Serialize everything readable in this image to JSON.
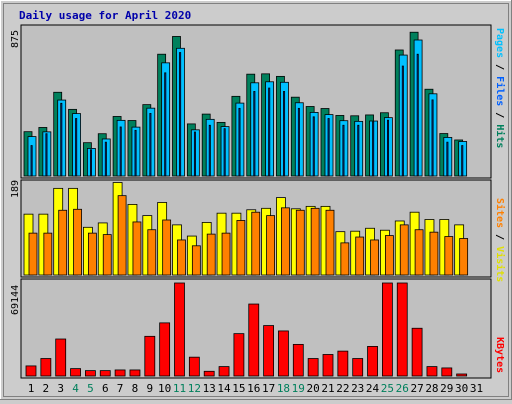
{
  "title": "Daily usage for April 2020",
  "colors": {
    "background": "#cccccc",
    "plot_bg": "#c0c0c0",
    "title": "#0000aa",
    "hits": "#00805c",
    "files": "#00c0ff",
    "pages": "#00c0ff",
    "visits": "#ffff00",
    "sites": "#ff8000",
    "kbytes": "#ff0000",
    "weekend_label": "#00805c",
    "day_label": "#000000"
  },
  "chart_data": [
    {
      "type": "bar",
      "panel": "top",
      "ymax_label": "875",
      "ylim": [
        0,
        875
      ],
      "right_label": {
        "parts": [
          "Pages",
          "Files",
          "Hits"
        ],
        "separator": " / "
      },
      "categories": [
        "1",
        "2",
        "3",
        "4",
        "5",
        "6",
        "7",
        "8",
        "9",
        "10",
        "11",
        "12",
        "13",
        "14",
        "15",
        "16",
        "17",
        "18",
        "19",
        "20",
        "21",
        "22",
        "23",
        "24",
        "25",
        "26",
        "27",
        "28",
        "29",
        "30",
        "31"
      ],
      "series": [
        {
          "name": "Hits",
          "values": [
            262,
            287,
            495,
            394,
            197,
            250,
            352,
            328,
            422,
            720,
            825,
            308,
            366,
            317,
            471,
            602,
            604,
            589,
            466,
            411,
            399,
            358,
            356,
            361,
            374,
            745,
            850,
            513,
            251,
            213,
            0
          ]
        },
        {
          "name": "Files",
          "values": [
            233,
            261,
            449,
            369,
            163,
            219,
            329,
            289,
            401,
            669,
            755,
            273,
            335,
            292,
            431,
            551,
            557,
            554,
            433,
            376,
            363,
            327,
            323,
            325,
            345,
            715,
            804,
            486,
            228,
            204,
            0
          ]
        },
        {
          "name": "Pages",
          "values": [
            180,
            250,
            430,
            340,
            155,
            200,
            290,
            270,
            370,
            610,
            730,
            260,
            300,
            280,
            400,
            500,
            520,
            500,
            400,
            350,
            340,
            300,
            300,
            320,
            330,
            650,
            720,
            450,
            200,
            180,
            0
          ]
        }
      ]
    },
    {
      "type": "bar",
      "panel": "middle",
      "ymax_label": "189",
      "ylim": [
        0,
        189
      ],
      "right_label": {
        "parts": [
          "Sites",
          "Visits"
        ],
        "separator": " / "
      },
      "categories": [
        "1",
        "2",
        "3",
        "4",
        "5",
        "6",
        "7",
        "8",
        "9",
        "10",
        "11",
        "12",
        "13",
        "14",
        "15",
        "16",
        "17",
        "18",
        "19",
        "20",
        "21",
        "22",
        "23",
        "24",
        "25",
        "26",
        "27",
        "28",
        "29",
        "30",
        "31"
      ],
      "series": [
        {
          "name": "Visits",
          "values": [
            125,
            125,
            178,
            178,
            98,
            107,
            190,
            145,
            122,
            149,
            103,
            80,
            108,
            127,
            127,
            134,
            137,
            159,
            136,
            141,
            141,
            89,
            90,
            96,
            92,
            111,
            129,
            114,
            114,
            103,
            0
          ]
        },
        {
          "name": "Sites",
          "values": [
            86,
            86,
            133,
            135,
            86,
            83,
            163,
            109,
            93,
            113,
            72,
            60,
            84,
            86,
            112,
            129,
            122,
            138,
            133,
            137,
            133,
            66,
            78,
            72,
            81,
            103,
            93,
            88,
            79,
            75,
            0
          ]
        }
      ]
    },
    {
      "type": "bar",
      "panel": "bottom",
      "ymax_label": "69144",
      "ylim": [
        0,
        69144
      ],
      "right_label": {
        "parts": [
          "KBytes"
        ],
        "separator": ""
      },
      "categories": [
        "1",
        "2",
        "3",
        "4",
        "5",
        "6",
        "7",
        "8",
        "9",
        "10",
        "11",
        "12",
        "13",
        "14",
        "15",
        "16",
        "17",
        "18",
        "19",
        "20",
        "21",
        "22",
        "23",
        "24",
        "25",
        "26",
        "27",
        "28",
        "29",
        "30",
        "31"
      ],
      "series": [
        {
          "name": "KBytes",
          "values": [
            7500,
            13000,
            27500,
            5500,
            4000,
            4000,
            4500,
            4500,
            29500,
            39500,
            69144,
            14000,
            3500,
            7000,
            31500,
            53500,
            37500,
            33500,
            23500,
            13000,
            16000,
            18500,
            13000,
            22000,
            69144,
            69144,
            35500,
            7000,
            6000,
            1500,
            0
          ]
        }
      ]
    }
  ],
  "x_labels": [
    {
      "t": "1",
      "w": false
    },
    {
      "t": "2",
      "w": false
    },
    {
      "t": "3",
      "w": false
    },
    {
      "t": "4",
      "w": true
    },
    {
      "t": "5",
      "w": true
    },
    {
      "t": "6",
      "w": false
    },
    {
      "t": "7",
      "w": false
    },
    {
      "t": "8",
      "w": false
    },
    {
      "t": "9",
      "w": false
    },
    {
      "t": "10",
      "w": false
    },
    {
      "t": "11",
      "w": true
    },
    {
      "t": "12",
      "w": true
    },
    {
      "t": "13",
      "w": false
    },
    {
      "t": "14",
      "w": false
    },
    {
      "t": "15",
      "w": false
    },
    {
      "t": "16",
      "w": false
    },
    {
      "t": "17",
      "w": false
    },
    {
      "t": "18",
      "w": true
    },
    {
      "t": "19",
      "w": true
    },
    {
      "t": "20",
      "w": false
    },
    {
      "t": "21",
      "w": false
    },
    {
      "t": "22",
      "w": false
    },
    {
      "t": "23",
      "w": false
    },
    {
      "t": "24",
      "w": false
    },
    {
      "t": "25",
      "w": true
    },
    {
      "t": "26",
      "w": true
    },
    {
      "t": "27",
      "w": false
    },
    {
      "t": "28",
      "w": false
    },
    {
      "t": "29",
      "w": false
    },
    {
      "t": "30",
      "w": false
    },
    {
      "t": "31",
      "w": false
    }
  ]
}
